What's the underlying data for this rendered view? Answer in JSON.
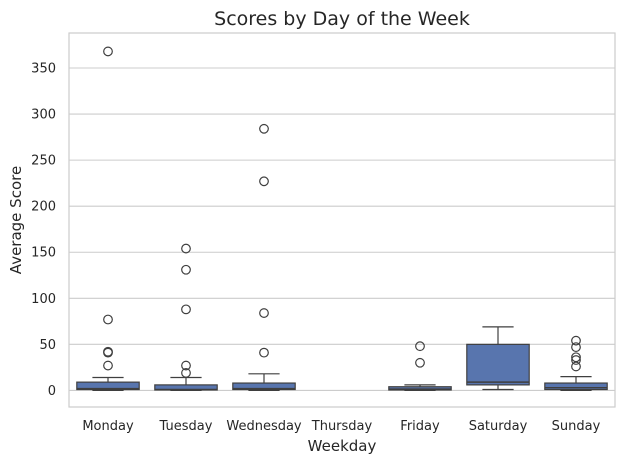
{
  "chart_data": {
    "type": "box",
    "title": "Scores by Day of the Week",
    "xlabel": "Weekday",
    "ylabel": "Average Score",
    "ylim": [
      -18,
      388
    ],
    "yticks": [
      0,
      50,
      100,
      150,
      200,
      250,
      300,
      350
    ],
    "categories": [
      "Monday",
      "Tuesday",
      "Wednesday",
      "Thursday",
      "Friday",
      "Saturday",
      "Sunday"
    ],
    "grid": true,
    "box_color": "#5875ae",
    "edge_color": "#3f3f3f",
    "boxes": [
      {
        "category": "Monday",
        "whisker_low": 0,
        "q1": 1,
        "median": 2,
        "q3": 9,
        "whisker_high": 14,
        "outliers": [
          368,
          77,
          42,
          41,
          27
        ]
      },
      {
        "category": "Tuesday",
        "whisker_low": 0,
        "q1": 0.5,
        "median": 1,
        "q3": 6,
        "whisker_high": 14,
        "outliers": [
          154,
          131,
          88,
          27,
          19
        ]
      },
      {
        "category": "Wednesday",
        "whisker_low": 0,
        "q1": 1,
        "median": 2,
        "q3": 8,
        "whisker_high": 18,
        "outliers": [
          284,
          227,
          84,
          41
        ]
      },
      {
        "category": "Thursday",
        "empty": true
      },
      {
        "category": "Friday",
        "whisker_low": 0,
        "q1": 0.5,
        "median": 1.5,
        "q3": 4,
        "whisker_high": 6,
        "outliers": [
          48,
          30
        ]
      },
      {
        "category": "Saturday",
        "whisker_low": 1,
        "q1": 6,
        "median": 9,
        "q3": 50,
        "whisker_high": 69,
        "outliers": []
      },
      {
        "category": "Sunday",
        "whisker_low": 0,
        "q1": 1,
        "median": 3,
        "q3": 8,
        "whisker_high": 15,
        "outliers": [
          54,
          47,
          36,
          33,
          26
        ]
      }
    ]
  }
}
